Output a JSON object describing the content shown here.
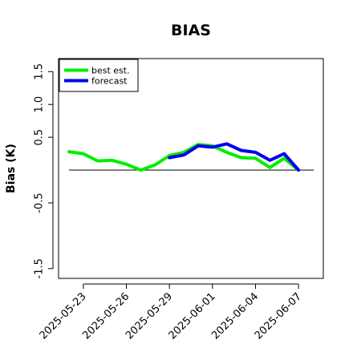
{
  "chart_data": {
    "type": "line",
    "title": "BIAS",
    "ylabel": "Bias (K)",
    "xlabel": "",
    "ylim": [
      -1.6,
      1.65
    ],
    "y_ticks": [
      -1.5,
      -0.5,
      0.5,
      1.0,
      1.5
    ],
    "y_tick_labels": [
      "-1.5",
      "-0.5",
      "0.5",
      "1.0",
      "1.5"
    ],
    "x_start": "2025-05-22",
    "x_end": "2025-06-08",
    "x_ticks": [
      "2025-05-23",
      "2025-05-26",
      "2025-05-29",
      "2025-06-01",
      "2025-06-04",
      "2025-06-07"
    ],
    "x_tick_label_colors": [
      "#000000",
      "#000000",
      "#228B22",
      "#000000",
      "#000000",
      "#000000"
    ],
    "reference_line": 0,
    "legend": {
      "placement": "top-left"
    },
    "series": [
      {
        "name": "best est.",
        "color": "#00ee00",
        "points": [
          [
            "2025-05-22",
            0.28
          ],
          [
            "2025-05-23",
            0.25
          ],
          [
            "2025-05-24",
            0.14
          ],
          [
            "2025-05-25",
            0.15
          ],
          [
            "2025-05-26",
            0.09
          ],
          [
            "2025-05-27",
            0.0
          ],
          [
            "2025-05-28",
            0.08
          ],
          [
            "2025-05-29",
            0.22
          ],
          [
            "2025-05-30",
            0.27
          ],
          [
            "2025-05-31",
            0.39
          ],
          [
            "2025-06-01",
            0.37
          ],
          [
            "2025-06-02",
            0.27
          ],
          [
            "2025-06-03",
            0.19
          ],
          [
            "2025-06-04",
            0.18
          ],
          [
            "2025-06-05",
            0.04
          ],
          [
            "2025-06-06",
            0.18
          ],
          [
            "2025-06-07",
            0.0
          ]
        ]
      },
      {
        "name": "forecast",
        "color": "#0000ee",
        "points": [
          [
            "2025-05-29",
            0.19
          ],
          [
            "2025-05-30",
            0.23
          ],
          [
            "2025-05-31",
            0.37
          ],
          [
            "2025-06-01",
            0.35
          ],
          [
            "2025-06-02",
            0.4
          ],
          [
            "2025-06-03",
            0.3
          ],
          [
            "2025-06-04",
            0.27
          ],
          [
            "2025-06-05",
            0.15
          ],
          [
            "2025-06-06",
            0.25
          ],
          [
            "2025-06-07",
            0.0
          ]
        ]
      }
    ]
  }
}
